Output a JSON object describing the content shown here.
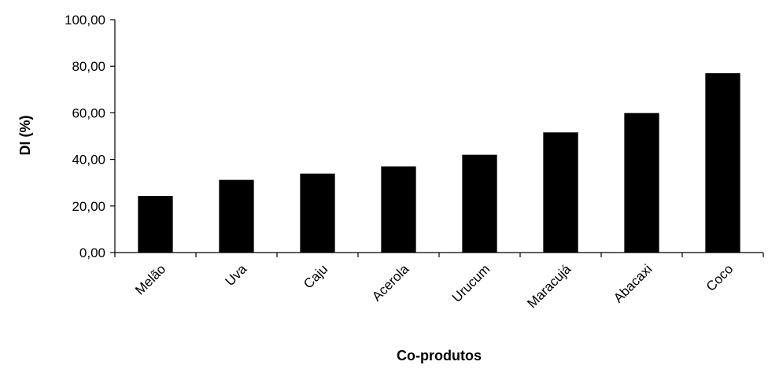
{
  "chart_data": {
    "type": "bar",
    "title": "",
    "xlabel": "Co-produtos",
    "ylabel": "DI (%)",
    "categories": [
      "Melão",
      "Uva",
      "Caju",
      "Acerola",
      "Urucum",
      "Maracujá",
      "Abacaxi",
      "Coco"
    ],
    "values": [
      24.3,
      31.2,
      33.9,
      37.0,
      42.0,
      51.6,
      59.9,
      77.0
    ],
    "ylim": [
      0,
      100
    ],
    "yticks": [
      0,
      20,
      40,
      60,
      80,
      100
    ],
    "ytick_labels": [
      "0,00",
      "20,00",
      "40,00",
      "60,00",
      "80,00",
      "100,00"
    ],
    "grid": false,
    "legend": "none",
    "bar_color": "#000000"
  }
}
